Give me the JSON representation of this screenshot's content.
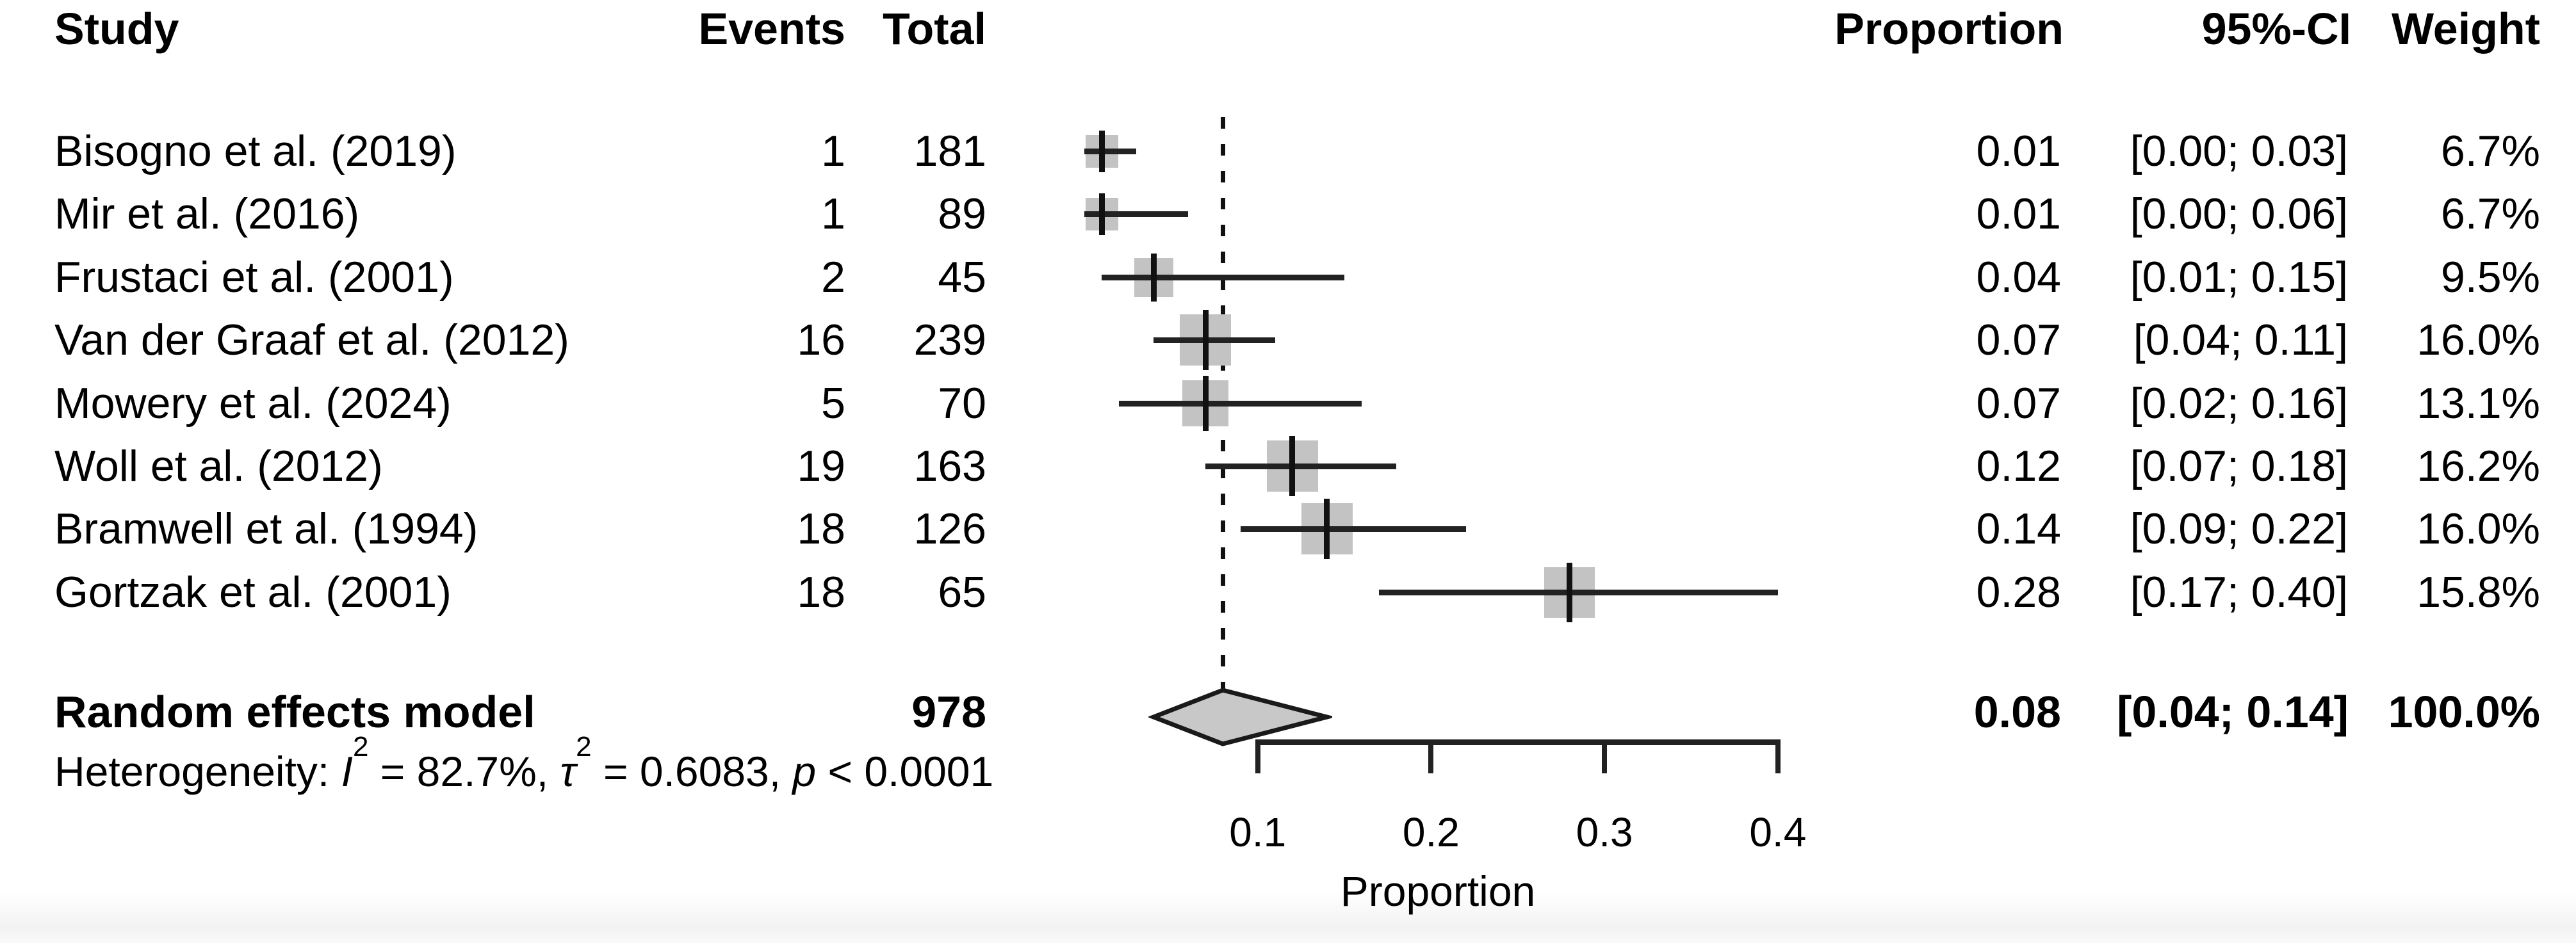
{
  "headers": {
    "study": "Study",
    "events": "Events",
    "total": "Total",
    "proportion": "Proportion",
    "ci": "95%-CI",
    "weight": "Weight"
  },
  "table": {
    "rows": [
      {
        "study": "Bisogno et al. (2019)",
        "events": "1",
        "total": "181",
        "proportion": "0.01",
        "ci": "[0.00; 0.03]",
        "weight": "6.7%"
      },
      {
        "study": "Mir et al. (2016)",
        "events": "1",
        "total": "89",
        "proportion": "0.01",
        "ci": "[0.00; 0.06]",
        "weight": "6.7%"
      },
      {
        "study": "Frustaci et al. (2001)",
        "events": "2",
        "total": "45",
        "proportion": "0.04",
        "ci": "[0.01; 0.15]",
        "weight": "9.5%"
      },
      {
        "study": "Van der Graaf et al. (2012)",
        "events": "16",
        "total": "239",
        "proportion": "0.07",
        "ci": "[0.04; 0.11]",
        "weight": "16.0%"
      },
      {
        "study": "Mowery et al. (2024)",
        "events": "5",
        "total": "70",
        "proportion": "0.07",
        "ci": "[0.02; 0.16]",
        "weight": "13.1%"
      },
      {
        "study": "Woll et al. (2012)",
        "events": "19",
        "total": "163",
        "proportion": "0.12",
        "ci": "[0.07; 0.18]",
        "weight": "16.2%"
      },
      {
        "study": "Bramwell et al. (1994)",
        "events": "18",
        "total": "126",
        "proportion": "0.14",
        "ci": "[0.09; 0.22]",
        "weight": "16.0%"
      },
      {
        "study": "Gortzak et al. (2001)",
        "events": "18",
        "total": "65",
        "proportion": "0.28",
        "ci": "[0.17; 0.40]",
        "weight": "15.8%"
      }
    ],
    "summary": {
      "label": "Random effects model",
      "total": "978",
      "proportion": "0.08",
      "ci": "[0.04; 0.14]",
      "weight": "100.0%"
    },
    "heterogeneity": {
      "prefix": "Heterogeneity: ",
      "i2_symbol": "I",
      "i2_sup": "2",
      "i2_rest": " = 82.7%, ",
      "tau_symbol": "τ",
      "tau_sup": "2",
      "tau_rest": " = 0.6083, ",
      "p_symbol": "p",
      "p_rest": " < 0.0001"
    }
  },
  "axis": {
    "tick_labels": [
      "0.1",
      "0.2",
      "0.3",
      "0.4"
    ],
    "label": "Proportion"
  },
  "chart_data": {
    "type": "forest",
    "xlabel": "Proportion",
    "x_ticks": [
      0.1,
      0.2,
      0.3,
      0.4
    ],
    "xlim": [
      0,
      0.42
    ],
    "reference_line": 0.08,
    "marker_color": "#c3c3c3",
    "line_color": "#222222",
    "studies": [
      {
        "study": "Bisogno et al. (2019)",
        "events": 1,
        "total": 181,
        "proportion": 0.01,
        "ci_lower": 0.0,
        "ci_upper": 0.03,
        "weight_pct": 6.7
      },
      {
        "study": "Mir et al. (2016)",
        "events": 1,
        "total": 89,
        "proportion": 0.01,
        "ci_lower": 0.0,
        "ci_upper": 0.06,
        "weight_pct": 6.7
      },
      {
        "study": "Frustaci et al. (2001)",
        "events": 2,
        "total": 45,
        "proportion": 0.04,
        "ci_lower": 0.01,
        "ci_upper": 0.15,
        "weight_pct": 9.5
      },
      {
        "study": "Van der Graaf et al. (2012)",
        "events": 16,
        "total": 239,
        "proportion": 0.07,
        "ci_lower": 0.04,
        "ci_upper": 0.11,
        "weight_pct": 16.0
      },
      {
        "study": "Mowery et al. (2024)",
        "events": 5,
        "total": 70,
        "proportion": 0.07,
        "ci_lower": 0.02,
        "ci_upper": 0.16,
        "weight_pct": 13.1
      },
      {
        "study": "Woll et al. (2012)",
        "events": 19,
        "total": 163,
        "proportion": 0.12,
        "ci_lower": 0.07,
        "ci_upper": 0.18,
        "weight_pct": 16.2
      },
      {
        "study": "Bramwell et al. (1994)",
        "events": 18,
        "total": 126,
        "proportion": 0.14,
        "ci_lower": 0.09,
        "ci_upper": 0.22,
        "weight_pct": 16.0
      },
      {
        "study": "Gortzak et al. (2001)",
        "events": 18,
        "total": 65,
        "proportion": 0.28,
        "ci_lower": 0.17,
        "ci_upper": 0.4,
        "weight_pct": 15.8
      }
    ],
    "summary": {
      "label": "Random effects model",
      "total": 978,
      "proportion": 0.08,
      "ci_lower": 0.04,
      "ci_upper": 0.14,
      "weight_pct": 100.0,
      "heterogeneity_I2_pct": 82.7,
      "heterogeneity_tau2": 0.6083,
      "heterogeneity_p": "< 0.0001"
    }
  }
}
